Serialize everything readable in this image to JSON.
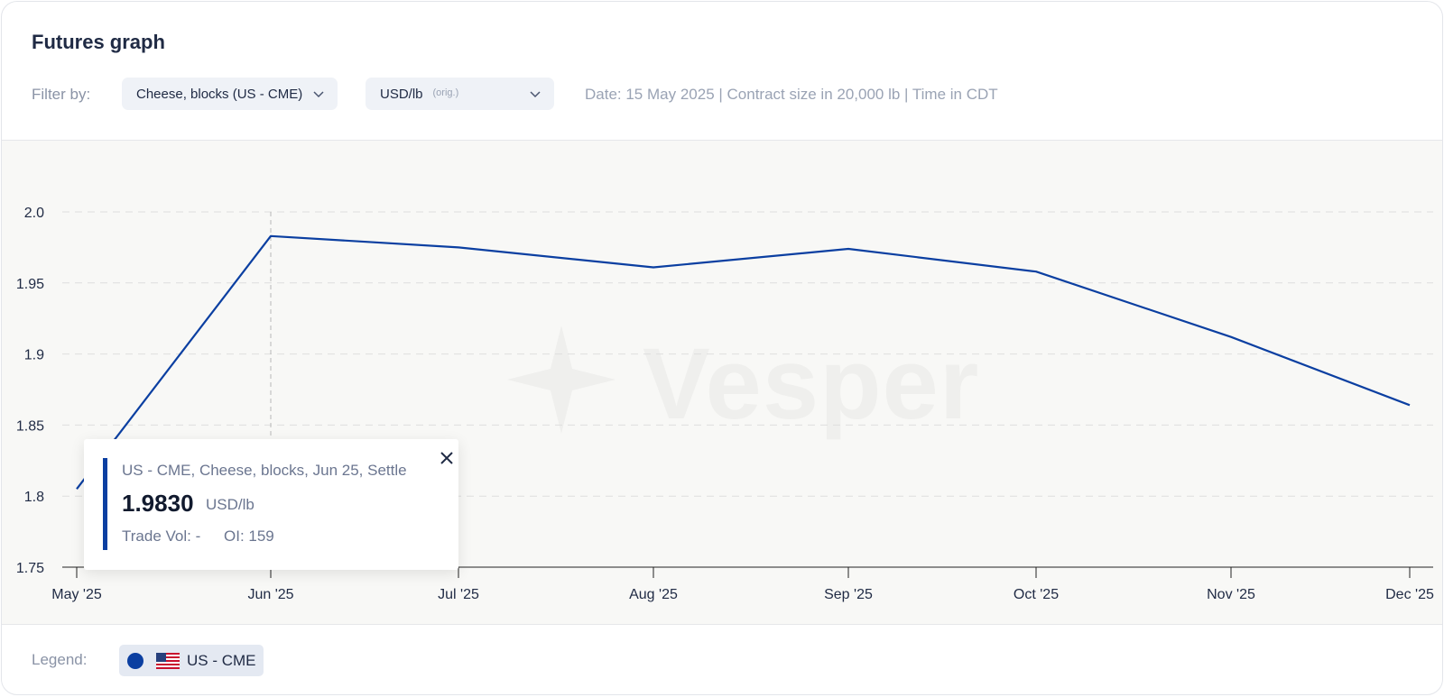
{
  "header": {
    "title": "Futures graph",
    "filter_label": "Filter by:",
    "product_select": "Cheese, blocks (US - CME)",
    "unit_select": "USD/lb",
    "unit_select_tag": "(orig.)",
    "meta": "Date: 15 May 2025 | Contract size in 20,000 lb | Time in CDT"
  },
  "watermark": {
    "text": "Vesper"
  },
  "colors": {
    "series": "#0b3fa1",
    "accent_bg": "#eff2f7"
  },
  "chart_data": {
    "type": "line",
    "title": "",
    "xlabel": "",
    "ylabel": "",
    "x": [
      "May '25",
      "Jun '25",
      "Jul '25",
      "Aug '25",
      "Sep '25",
      "Oct '25",
      "Nov '25",
      "Dec '25"
    ],
    "series": [
      {
        "name": "US - CME",
        "values": [
          1.805,
          1.983,
          1.975,
          1.961,
          1.974,
          1.958,
          1.912,
          1.864
        ]
      }
    ],
    "yticks": [
      "1.75",
      "1.8",
      "1.85",
      "1.9",
      "1.95",
      "2.0"
    ],
    "ylim": [
      1.75,
      2.0
    ],
    "grid": true,
    "legend_position": "bottom-left",
    "highlight_category": "Jun '25"
  },
  "tooltip": {
    "header": "US - CME, Cheese, blocks, Jun 25, Settle",
    "value": "1.9830",
    "unit": "USD/lb",
    "trade_vol": "Trade Vol: -",
    "oi": "OI: 159"
  },
  "legend": {
    "label": "Legend:",
    "items": [
      {
        "label": "US - CME",
        "flag": "us-flag-icon"
      }
    ]
  }
}
